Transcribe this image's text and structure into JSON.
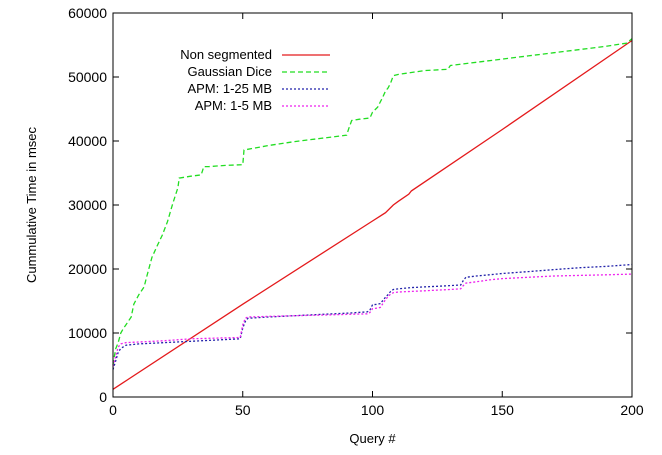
{
  "chart_data": {
    "type": "line",
    "xlabel": "Query #",
    "ylabel": "Cummulative Time in msec",
    "xlim": [
      0,
      200
    ],
    "ylim": [
      0,
      60000
    ],
    "xticks": [
      0,
      50,
      100,
      150,
      200
    ],
    "yticks": [
      0,
      10000,
      20000,
      30000,
      40000,
      50000,
      60000
    ],
    "grid": false,
    "legend_position": "top-left",
    "series": [
      {
        "name": "Non segmented",
        "color": "#e41a1c",
        "dash": "solid",
        "x": [
          0,
          50,
          100,
          105,
          108,
          110,
          114,
          115,
          150,
          200
        ],
        "y": [
          1200,
          14500,
          27500,
          28800,
          30000,
          30600,
          31700,
          32200,
          41800,
          55700
        ]
      },
      {
        "name": "Gaussian Dice",
        "color": "#22dd22",
        "dash": "dashed",
        "x": [
          0,
          1,
          2,
          3,
          4,
          5,
          7,
          8,
          10,
          12,
          13,
          15,
          17,
          19,
          21,
          23,
          25,
          25.5,
          30,
          34,
          35,
          37,
          40,
          44,
          50,
          50.5,
          60,
          70,
          80,
          90,
          91,
          92,
          95,
          99,
          100,
          102,
          104,
          105,
          106,
          107,
          108,
          110,
          115,
          120,
          129,
          130,
          140,
          150,
          160,
          170,
          180,
          190,
          198,
          200
        ],
        "y": [
          5000,
          7500,
          8500,
          10000,
          10700,
          11300,
          12500,
          14500,
          16000,
          17200,
          18800,
          21800,
          23600,
          25300,
          27400,
          30200,
          32700,
          34200,
          34500,
          34700,
          36000,
          36000,
          36100,
          36200,
          36300,
          38600,
          39300,
          39900,
          40400,
          40900,
          42100,
          43200,
          43400,
          43600,
          44500,
          45300,
          46900,
          47800,
          48300,
          49100,
          50200,
          50400,
          50700,
          51000,
          51200,
          51800,
          52300,
          52800,
          53300,
          53800,
          54300,
          54800,
          55300,
          56000
        ]
      },
      {
        "name": "APM: 1-25 MB",
        "color": "#2222aa",
        "dash": "dotted",
        "x": [
          0,
          1,
          2,
          3,
          5,
          10,
          20,
          30,
          40,
          49,
          50,
          51,
          52,
          60,
          70,
          80,
          90,
          98,
          99,
          100,
          102,
          103,
          105,
          106,
          107,
          108,
          110,
          115,
          120,
          125,
          130,
          134,
          135,
          136,
          140,
          145,
          150,
          160,
          170,
          180,
          190,
          200
        ],
        "y": [
          4300,
          5600,
          7000,
          7600,
          8100,
          8300,
          8500,
          8700,
          8900,
          9100,
          10800,
          11800,
          12300,
          12500,
          12700,
          12900,
          13100,
          13300,
          13600,
          14400,
          14500,
          14600,
          15600,
          16000,
          16500,
          16800,
          16900,
          17100,
          17200,
          17300,
          17400,
          17500,
          18200,
          18700,
          18900,
          19100,
          19300,
          19600,
          19900,
          20200,
          20400,
          20700
        ]
      },
      {
        "name": "APM: 1-5 MB",
        "color": "#ee22ee",
        "dash": "dotted",
        "x": [
          0,
          1,
          2,
          3,
          5,
          10,
          20,
          30,
          40,
          49,
          50,
          51,
          52,
          60,
          70,
          80,
          90,
          98,
          99,
          100,
          102,
          103,
          105,
          106,
          107,
          108,
          110,
          115,
          120,
          125,
          130,
          134,
          135,
          136,
          140,
          145,
          150,
          160,
          170,
          180,
          190,
          200
        ],
        "y": [
          4800,
          6300,
          7800,
          8300,
          8500,
          8600,
          8800,
          9100,
          9200,
          9300,
          11300,
          12300,
          12500,
          12600,
          12700,
          12800,
          12900,
          13000,
          13200,
          13800,
          13900,
          14000,
          15200,
          15700,
          16100,
          16300,
          16400,
          16500,
          16600,
          16700,
          16800,
          16900,
          17400,
          17800,
          18000,
          18300,
          18500,
          18700,
          18900,
          19000,
          19100,
          19200
        ]
      }
    ]
  }
}
